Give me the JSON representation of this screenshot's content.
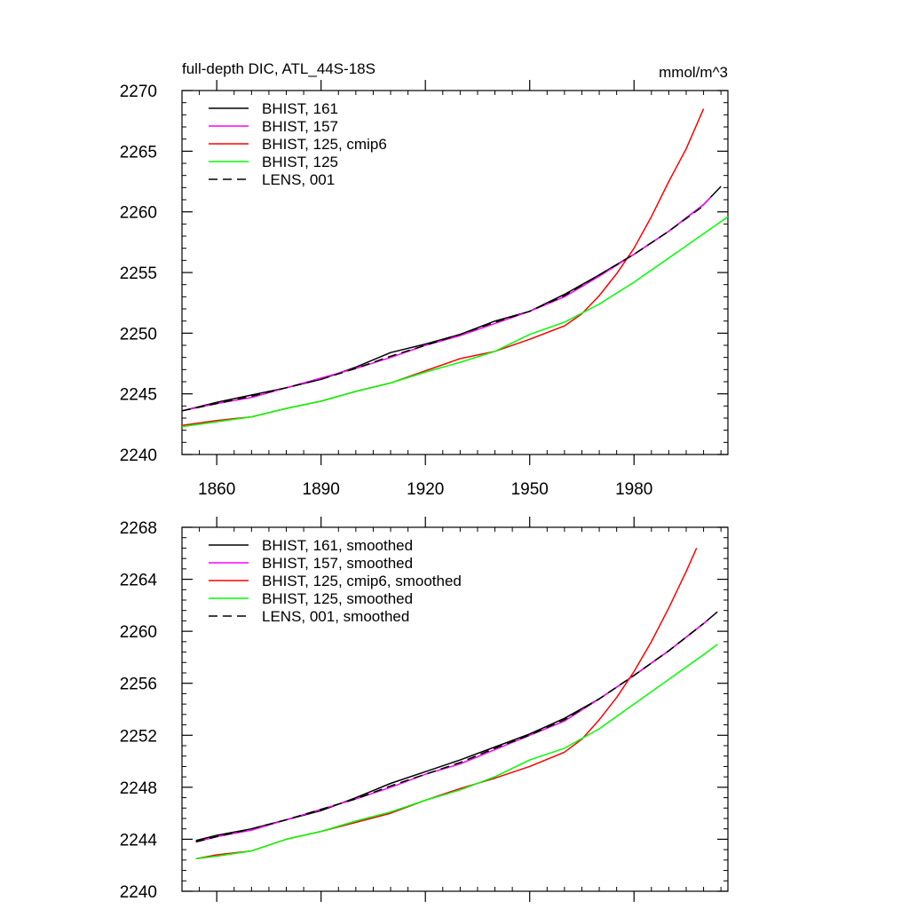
{
  "figure": {
    "title_left": "full-depth DIC, ATL_44S-18S",
    "title_right": "mmol/m^3"
  },
  "chart_data": [
    {
      "type": "line",
      "title": "full-depth DIC, ATL_44S-18S",
      "units": "mmol/m^3",
      "xlim": [
        1850,
        2007
      ],
      "ylim": [
        2240,
        2270
      ],
      "x_ticks": [
        1860,
        1890,
        1920,
        1950,
        1980
      ],
      "x_tick_labels": [
        "1860",
        "1890",
        "1920",
        "1950",
        "1980"
      ],
      "y_ticks": [
        2240,
        2245,
        2250,
        2255,
        2260,
        2265,
        2270
      ],
      "y_tick_labels": [
        "2240",
        "2245",
        "2250",
        "2255",
        "2260",
        "2265",
        "2270"
      ],
      "legend": "top-left",
      "series": [
        {
          "name": "BHIST, 161",
          "color": "#000000",
          "dash": "solid",
          "x": [
            1850,
            1860,
            1870,
            1880,
            1890,
            1900,
            1910,
            1920,
            1930,
            1940,
            1950,
            1960,
            1970,
            1980,
            1990,
            2000,
            2005
          ],
          "y": [
            2243.6,
            2244.3,
            2244.9,
            2245.5,
            2246.2,
            2247.2,
            2248.4,
            2249.1,
            2249.9,
            2251.0,
            2251.8,
            2253.2,
            2254.8,
            2256.5,
            2258.4,
            2260.6,
            2262.1
          ]
        },
        {
          "name": "BHIST, 157",
          "color": "#ff00ff",
          "dash": "solid",
          "x": [
            1850,
            1860,
            1870,
            1880,
            1890,
            1900,
            1910,
            1920,
            1930,
            1940,
            1950,
            1960,
            1970,
            1980,
            1990,
            2000,
            2002
          ],
          "y": [
            2243.6,
            2244.2,
            2244.7,
            2245.5,
            2246.3,
            2247.1,
            2248.0,
            2249.0,
            2249.8,
            2250.8,
            2251.8,
            2253.0,
            2254.7,
            2256.5,
            2258.4,
            2260.6,
            2261.2
          ]
        },
        {
          "name": "BHIST, 125, cmip6",
          "color": "#ff0000",
          "dash": "solid",
          "x": [
            1850,
            1860,
            1870,
            1880,
            1890,
            1900,
            1910,
            1920,
            1930,
            1940,
            1950,
            1960,
            1965,
            1970,
            1975,
            1980,
            1985,
            1990,
            1995,
            2000
          ],
          "y": [
            2242.4,
            2242.8,
            2243.1,
            2243.8,
            2244.4,
            2245.2,
            2245.9,
            2246.9,
            2247.9,
            2248.5,
            2249.5,
            2250.6,
            2251.6,
            2253.1,
            2254.9,
            2257.0,
            2259.6,
            2262.5,
            2265.2,
            2268.5
          ]
        },
        {
          "name": "BHIST, 125",
          "color": "#00ff00",
          "dash": "solid",
          "x": [
            1850,
            1860,
            1870,
            1880,
            1890,
            1900,
            1910,
            1920,
            1930,
            1940,
            1950,
            1960,
            1970,
            1980,
            1990,
            2000,
            2007
          ],
          "y": [
            2242.3,
            2242.7,
            2243.1,
            2243.8,
            2244.4,
            2245.2,
            2245.9,
            2246.8,
            2247.6,
            2248.5,
            2249.9,
            2250.9,
            2252.4,
            2254.2,
            2256.2,
            2258.2,
            2259.6
          ]
        },
        {
          "name": "LENS, 001",
          "color": "#000000",
          "dash": "dashed",
          "x": [
            1850,
            1860,
            1870,
            1880,
            1890,
            1900,
            1910,
            1920,
            1930,
            1940,
            1950,
            1960,
            1970,
            1980,
            1990,
            2000
          ],
          "y": [
            2243.6,
            2244.2,
            2244.8,
            2245.5,
            2246.2,
            2247.1,
            2248.1,
            2249.0,
            2249.9,
            2250.9,
            2251.8,
            2253.1,
            2254.8,
            2256.5,
            2258.4,
            2260.5
          ]
        }
      ]
    },
    {
      "type": "line",
      "xlim": [
        1850,
        2007
      ],
      "ylim": [
        2240,
        2268
      ],
      "x_ticks": [
        1860,
        1890,
        1920,
        1950,
        1980
      ],
      "y_ticks": [
        2240,
        2244,
        2248,
        2252,
        2256,
        2260,
        2264,
        2268
      ],
      "y_tick_labels": [
        "2240",
        "2244",
        "2248",
        "2252",
        "2256",
        "2260",
        "2264",
        "2268"
      ],
      "legend": "top-left",
      "series": [
        {
          "name": "BHIST, 161, smoothed",
          "color": "#000000",
          "dash": "solid",
          "x": [
            1854,
            1860,
            1870,
            1880,
            1890,
            1900,
            1910,
            1920,
            1930,
            1940,
            1950,
            1960,
            1970,
            1980,
            1990,
            2000,
            2004
          ],
          "y": [
            2243.9,
            2244.3,
            2244.8,
            2245.5,
            2246.2,
            2247.2,
            2248.3,
            2249.2,
            2250.1,
            2251.1,
            2252.1,
            2253.3,
            2254.8,
            2256.6,
            2258.5,
            2260.6,
            2261.5
          ]
        },
        {
          "name": "BHIST, 157, smoothed",
          "color": "#ff00ff",
          "dash": "solid",
          "x": [
            1854,
            1860,
            1870,
            1880,
            1890,
            1900,
            1910,
            1920,
            1930,
            1940,
            1950,
            1960,
            1970,
            1980,
            1990,
            2000,
            2001
          ],
          "y": [
            2243.8,
            2244.2,
            2244.7,
            2245.5,
            2246.3,
            2247.1,
            2248.0,
            2249.0,
            2249.8,
            2250.9,
            2252.0,
            2253.1,
            2254.8,
            2256.6,
            2258.5,
            2260.6,
            2260.8
          ]
        },
        {
          "name": "BHIST, 125, cmip6, smoothed",
          "color": "#ff0000",
          "dash": "solid",
          "x": [
            1854,
            1860,
            1870,
            1880,
            1890,
            1900,
            1910,
            1920,
            1930,
            1940,
            1950,
            1960,
            1965,
            1970,
            1975,
            1980,
            1985,
            1990,
            1995,
            1998
          ],
          "y": [
            2242.5,
            2242.8,
            2243.1,
            2244.0,
            2244.6,
            2245.3,
            2246.0,
            2247.0,
            2247.9,
            2248.7,
            2249.6,
            2250.7,
            2251.7,
            2253.2,
            2254.9,
            2256.9,
            2259.2,
            2261.8,
            2264.6,
            2266.4
          ]
        },
        {
          "name": "BHIST, 125, smoothed",
          "color": "#00ff00",
          "dash": "solid",
          "x": [
            1854,
            1860,
            1870,
            1880,
            1890,
            1900,
            1910,
            1920,
            1930,
            1940,
            1950,
            1960,
            1970,
            1980,
            1990,
            2000,
            2004
          ],
          "y": [
            2242.5,
            2242.7,
            2243.1,
            2244.0,
            2244.6,
            2245.4,
            2246.1,
            2247.0,
            2247.8,
            2248.8,
            2250.1,
            2251.0,
            2252.5,
            2254.4,
            2256.3,
            2258.2,
            2259.0
          ]
        },
        {
          "name": "LENS, 001, smoothed",
          "color": "#000000",
          "dash": "dashed",
          "x": [
            1854,
            1860,
            1870,
            1880,
            1890,
            1900,
            1910,
            1920,
            1930,
            1940,
            1950,
            1960,
            1970,
            1980,
            1990,
            2000
          ],
          "y": [
            2243.8,
            2244.2,
            2244.8,
            2245.5,
            2246.3,
            2247.1,
            2248.1,
            2249.0,
            2249.9,
            2251.0,
            2252.0,
            2253.2,
            2254.8,
            2256.6,
            2258.5,
            2260.6
          ]
        }
      ]
    }
  ]
}
